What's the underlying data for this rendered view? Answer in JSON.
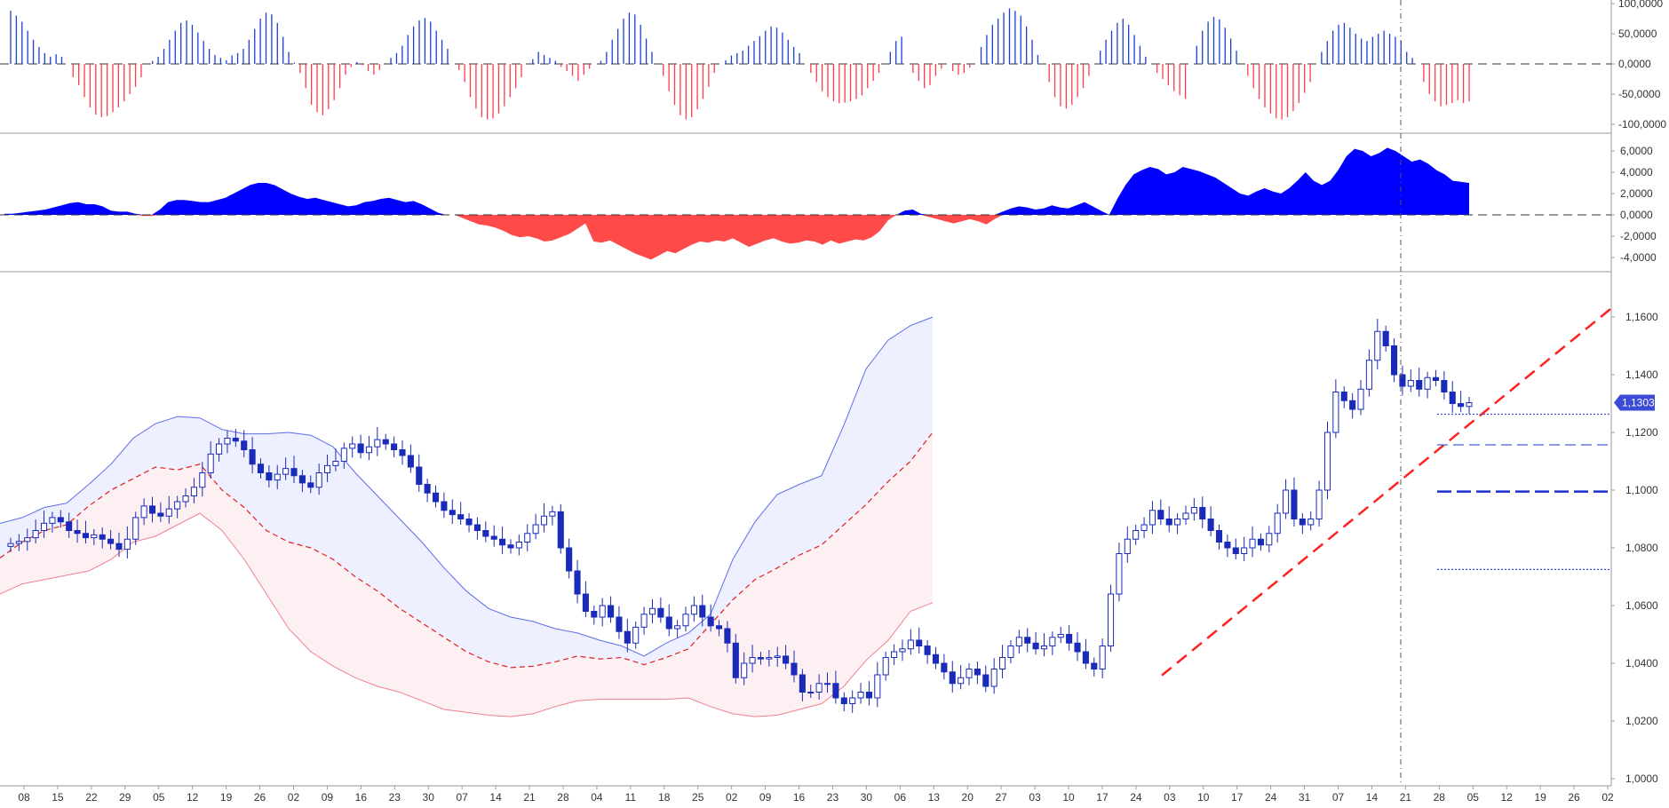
{
  "chart_data": [
    {
      "type": "bar",
      "panel": "top-oscillator",
      "y_ticks": [
        "100,0000",
        "50,0000",
        "0,0000",
        "-50,0000",
        "-100,0000"
      ],
      "ylim": [
        -100,
        100
      ],
      "zero_line": "dashed",
      "colors": {
        "positive": "#1a3fd6",
        "negative": "#ff3b4a"
      },
      "values": [
        88,
        80,
        70,
        55,
        40,
        28,
        18,
        12,
        16,
        12,
        0,
        -22,
        -35,
        -55,
        -72,
        -84,
        -88,
        -86,
        -80,
        -72,
        -62,
        -50,
        -38,
        -22,
        0,
        5,
        12,
        25,
        40,
        55,
        68,
        72,
        65,
        52,
        38,
        25,
        15,
        10,
        6,
        14,
        18,
        25,
        40,
        58,
        75,
        85,
        82,
        68,
        45,
        20,
        2,
        -15,
        -40,
        -68,
        -80,
        -85,
        -75,
        -60,
        -40,
        -18,
        -5,
        3,
        -2,
        -12,
        -18,
        -10,
        0,
        10,
        18,
        30,
        48,
        62,
        72,
        76,
        70,
        55,
        40,
        25,
        0,
        -10,
        -30,
        -55,
        -74,
        -88,
        -92,
        -90,
        -82,
        -70,
        -55,
        -40,
        -22,
        0,
        8,
        20,
        15,
        10,
        5,
        -5,
        -12,
        -20,
        -28,
        -18,
        -8,
        0,
        5,
        20,
        40,
        58,
        75,
        85,
        82,
        65,
        42,
        20,
        0,
        -20,
        -45,
        -68,
        -85,
        -92,
        -88,
        -75,
        -58,
        -38,
        -15,
        0,
        6,
        14,
        18,
        22,
        30,
        38,
        46,
        55,
        62,
        60,
        52,
        40,
        28,
        18,
        0,
        -15,
        -30,
        -45,
        -55,
        -62,
        -65,
        -64,
        -62,
        -58,
        -52,
        -40,
        -28,
        -15,
        0,
        20,
        38,
        45,
        0,
        -15,
        -28,
        -40,
        -35,
        -20,
        -8,
        0,
        -12,
        -18,
        -15,
        -6,
        0,
        28,
        48,
        65,
        75,
        85,
        92,
        88,
        80,
        62,
        40,
        15,
        0,
        -30,
        -55,
        -70,
        -74,
        -68,
        -55,
        -40,
        -20,
        0,
        22,
        40,
        55,
        68,
        75,
        65,
        48,
        30,
        12,
        0,
        -15,
        -25,
        -35,
        -45,
        -52,
        -58,
        0,
        30,
        55,
        70,
        78,
        74,
        60,
        42,
        22,
        0,
        -20,
        -40,
        -58,
        -72,
        -82,
        -90,
        -92,
        -88,
        -78,
        -65,
        -48,
        -30,
        0,
        20,
        38,
        55,
        65,
        68,
        60,
        50,
        42,
        38,
        45,
        50,
        55,
        50,
        45,
        38,
        20,
        10,
        0,
        -30,
        -50,
        -62,
        -70,
        -68,
        -65,
        -60,
        -65,
        -62
      ]
    },
    {
      "type": "area",
      "panel": "middle-oscillator",
      "y_ticks": [
        "6,0000",
        "4,0000",
        "2,0000",
        "0,0000",
        "-2,0000",
        "-4,0000"
      ],
      "ylim": [
        -5,
        7
      ],
      "zero_line": "dashed",
      "colors": {
        "positive": "#0000ff",
        "negative": "#ff4a4a"
      },
      "values": [
        0.1,
        0.1,
        0.2,
        0.3,
        0.4,
        0.5,
        0.7,
        0.9,
        1.1,
        1.2,
        1.0,
        1.0,
        0.8,
        0.4,
        0.3,
        0.3,
        0.1,
        -0.1,
        -0.1,
        0.5,
        1.2,
        1.4,
        1.4,
        1.3,
        1.2,
        1.2,
        1.4,
        1.6,
        2.0,
        2.4,
        2.8,
        3.0,
        3.0,
        2.8,
        2.4,
        2.0,
        1.7,
        1.5,
        1.6,
        1.4,
        1.2,
        1.0,
        0.8,
        0.9,
        1.2,
        1.3,
        1.5,
        1.6,
        1.4,
        1.2,
        1.3,
        1.0,
        0.6,
        0.2,
        0,
        0,
        -0.3,
        -0.6,
        -0.9,
        -1.0,
        -1.2,
        -1.5,
        -1.9,
        -2.1,
        -2.0,
        -2.2,
        -2.5,
        -2.4,
        -2.1,
        -1.8,
        -1.3,
        -0.8,
        -2.5,
        -2.6,
        -2.4,
        -2.8,
        -3.2,
        -3.6,
        -3.9,
        -4.2,
        -3.8,
        -3.4,
        -3.6,
        -3.2,
        -2.8,
        -2.5,
        -2.6,
        -2.4,
        -2.5,
        -2.2,
        -2.6,
        -3.0,
        -2.7,
        -2.4,
        -2.2,
        -2.5,
        -2.7,
        -2.6,
        -2.4,
        -2.5,
        -2.8,
        -2.4,
        -2.7,
        -2.5,
        -2.3,
        -2.4,
        -2.1,
        -1.5,
        -0.5,
        0,
        0.4,
        0.5,
        0.1,
        -0.2,
        -0.4,
        -0.6,
        -0.8,
        -0.6,
        -0.4,
        -0.6,
        -0.9,
        -0.4,
        0.3,
        0.6,
        0.8,
        0.7,
        0.5,
        0.6,
        0.9,
        0.7,
        0.6,
        0.9,
        1.2,
        0.8,
        0.4,
        0,
        1.5,
        2.8,
        3.8,
        4.2,
        4.5,
        4.3,
        3.8,
        4.0,
        4.5,
        4.3,
        4.1,
        3.8,
        3.5,
        3.0,
        2.5,
        2.0,
        1.8,
        2.2,
        2.5,
        2.2,
        2.0,
        2.5,
        3.2,
        4.0,
        3.2,
        2.8,
        3.2,
        4.2,
        5.5,
        6.2,
        6.0,
        5.5,
        5.8,
        6.3,
        6.0,
        5.5,
        5.0,
        5.2,
        4.8,
        4.2,
        3.8,
        3.2,
        3.1,
        3.0
      ]
    },
    {
      "type": "line",
      "panel": "price",
      "y_ticks": [
        "1,1600",
        "1,1400",
        "1,1200",
        "1,1000",
        "1,0800",
        "1,0600",
        "1,0400",
        "1,0200",
        "1,0000"
      ],
      "ylim": [
        1.0,
        1.1718
      ],
      "last_price_label": "1,1303",
      "x_ticks": [
        "08",
        "15",
        "22",
        "29",
        "05",
        "12",
        "19",
        "26",
        "02",
        "09",
        "16",
        "23",
        "30",
        "07",
        "14",
        "21",
        "28",
        "04",
        "11",
        "18",
        "25",
        "02",
        "09",
        "16",
        "23",
        "30",
        "06",
        "13",
        "20",
        "27",
        "03",
        "10",
        "17",
        "24",
        "03",
        "10",
        "17",
        "24",
        "31",
        "07",
        "14",
        "21",
        "28",
        "05",
        "12",
        "19",
        "26",
        "02"
      ],
      "close": [
        1.0815,
        1.0822,
        1.0835,
        1.086,
        1.0885,
        1.0905,
        1.089,
        1.086,
        1.085,
        1.0835,
        1.0845,
        1.083,
        1.0815,
        1.0795,
        1.083,
        1.0905,
        1.0945,
        1.092,
        1.091,
        1.0935,
        1.096,
        1.098,
        1.101,
        1.106,
        1.1125,
        1.116,
        1.118,
        1.117,
        1.114,
        1.109,
        1.106,
        1.1035,
        1.1055,
        1.1075,
        1.105,
        1.1025,
        1.101,
        1.106,
        1.1085,
        1.11,
        1.1145,
        1.116,
        1.113,
        1.115,
        1.1175,
        1.116,
        1.114,
        1.112,
        1.108,
        1.102,
        1.099,
        1.096,
        1.093,
        1.0915,
        1.09,
        1.088,
        1.086,
        1.084,
        1.083,
        1.081,
        1.08,
        1.082,
        1.085,
        1.088,
        1.091,
        1.0925,
        1.08,
        1.072,
        1.064,
        1.058,
        1.056,
        1.06,
        1.056,
        1.051,
        1.047,
        1.0525,
        1.057,
        1.059,
        1.056,
        1.052,
        1.053,
        1.057,
        1.06,
        1.056,
        1.053,
        1.052,
        1.047,
        1.035,
        1.04,
        1.042,
        1.0415,
        1.042,
        1.0425,
        1.04,
        1.036,
        1.03,
        1.03,
        1.033,
        1.033,
        1.028,
        1.026,
        1.028,
        1.03,
        1.028,
        1.036,
        1.042,
        1.044,
        1.045,
        1.048,
        1.046,
        1.043,
        1.04,
        1.037,
        1.033,
        1.035,
        1.038,
        1.036,
        1.032,
        1.038,
        1.042,
        1.046,
        1.049,
        1.047,
        1.045,
        1.046,
        1.049,
        1.05,
        1.047,
        1.044,
        1.04,
        1.038,
        1.046,
        1.064,
        1.078,
        1.083,
        1.086,
        1.088,
        1.093,
        1.09,
        1.088,
        1.09,
        1.092,
        1.094,
        1.09,
        1.086,
        1.082,
        1.08,
        1.078,
        1.08,
        1.083,
        1.081,
        1.085,
        1.092,
        1.1,
        1.09,
        1.088,
        1.09,
        1.1,
        1.12,
        1.134,
        1.131,
        1.128,
        1.135,
        1.145,
        1.155,
        1.15,
        1.14,
        1.136,
        1.138,
        1.135,
        1.139,
        1.138,
        1.134,
        1.13,
        1.129,
        1.1303
      ],
      "middle_band_points": [
        [
          0,
          1.0765
        ],
        [
          25,
          1.082
        ],
        [
          50,
          1.086
        ],
        [
          75,
          1.088
        ],
        [
          100,
          1.0945
        ],
        [
          125,
          1.1
        ],
        [
          150,
          1.104
        ],
        [
          175,
          1.108
        ],
        [
          200,
          1.107
        ],
        [
          225,
          1.109
        ],
        [
          250,
          1.1
        ],
        [
          275,
          1.094
        ],
        [
          300,
          1.086
        ],
        [
          325,
          1.082
        ],
        [
          350,
          1.08
        ],
        [
          375,
          1.076
        ],
        [
          400,
          1.07
        ],
        [
          425,
          1.065
        ],
        [
          450,
          1.059
        ],
        [
          475,
          1.054
        ],
        [
          500,
          1.049
        ],
        [
          525,
          1.044
        ],
        [
          550,
          1.0405
        ],
        [
          575,
          1.0385
        ],
        [
          600,
          1.039
        ],
        [
          625,
          1.0405
        ],
        [
          650,
          1.0425
        ],
        [
          675,
          1.0415
        ],
        [
          700,
          1.042
        ],
        [
          725,
          1.0395
        ],
        [
          750,
          1.042
        ],
        [
          775,
          1.045
        ],
        [
          800,
          1.0535
        ],
        [
          825,
          1.062
        ],
        [
          850,
          1.069
        ],
        [
          875,
          1.073
        ],
        [
          900,
          1.0775
        ],
        [
          925,
          1.081
        ],
        [
          950,
          1.088
        ],
        [
          975,
          1.095
        ],
        [
          1000,
          1.103
        ],
        [
          1025,
          1.11
        ],
        [
          1050,
          1.12
        ]
      ],
      "upper_band_points": [
        [
          0,
          1.0885
        ],
        [
          25,
          1.0905
        ],
        [
          50,
          1.094
        ],
        [
          75,
          1.0955
        ],
        [
          100,
          1.102
        ],
        [
          125,
          1.109
        ],
        [
          150,
          1.118
        ],
        [
          175,
          1.123
        ],
        [
          200,
          1.1255
        ],
        [
          225,
          1.125
        ],
        [
          250,
          1.121
        ],
        [
          275,
          1.1195
        ],
        [
          300,
          1.1195
        ],
        [
          325,
          1.12
        ],
        [
          350,
          1.119
        ],
        [
          375,
          1.115
        ],
        [
          400,
          1.106
        ],
        [
          425,
          1.098
        ],
        [
          450,
          1.09
        ],
        [
          475,
          1.082
        ],
        [
          500,
          1.073
        ],
        [
          525,
          1.065
        ],
        [
          550,
          1.059
        ],
        [
          575,
          1.056
        ],
        [
          600,
          1.0545
        ],
        [
          625,
          1.052
        ],
        [
          650,
          1.0505
        ],
        [
          675,
          1.048
        ],
        [
          700,
          1.046
        ],
        [
          725,
          1.0425
        ],
        [
          750,
          1.047
        ],
        [
          775,
          1.0505
        ],
        [
          800,
          1.057
        ],
        [
          825,
          1.076
        ],
        [
          850,
          1.089
        ],
        [
          875,
          1.0985
        ],
        [
          900,
          1.102
        ],
        [
          925,
          1.105
        ],
        [
          950,
          1.1225
        ],
        [
          975,
          1.142
        ],
        [
          1000,
          1.152
        ],
        [
          1025,
          1.157
        ],
        [
          1050,
          1.16
        ]
      ],
      "lower_band_points": [
        [
          0,
          1.064
        ],
        [
          25,
          1.0675
        ],
        [
          50,
          1.069
        ],
        [
          75,
          1.0705
        ],
        [
          100,
          1.072
        ],
        [
          125,
          1.076
        ],
        [
          150,
          1.082
        ],
        [
          175,
          1.084
        ],
        [
          200,
          1.088
        ],
        [
          225,
          1.092
        ],
        [
          250,
          1.086
        ],
        [
          275,
          1.076
        ],
        [
          300,
          1.064
        ],
        [
          325,
          1.052
        ],
        [
          350,
          1.044
        ],
        [
          375,
          1.039
        ],
        [
          400,
          1.035
        ],
        [
          425,
          1.032
        ],
        [
          450,
          1.03
        ],
        [
          475,
          1.027
        ],
        [
          500,
          1.024
        ],
        [
          525,
          1.023
        ],
        [
          550,
          1.022
        ],
        [
          575,
          1.0215
        ],
        [
          600,
          1.0225
        ],
        [
          625,
          1.025
        ],
        [
          650,
          1.027
        ],
        [
          675,
          1.0275
        ],
        [
          700,
          1.0275
        ],
        [
          725,
          1.0275
        ],
        [
          750,
          1.0275
        ],
        [
          775,
          1.028
        ],
        [
          800,
          1.025
        ],
        [
          825,
          1.0225
        ],
        [
          850,
          1.0215
        ],
        [
          875,
          1.022
        ],
        [
          900,
          1.024
        ],
        [
          925,
          1.026
        ],
        [
          950,
          1.032
        ],
        [
          975,
          1.041
        ],
        [
          1000,
          1.048
        ],
        [
          1025,
          1.058
        ],
        [
          1050,
          1.061
        ]
      ],
      "trendline": {
        "start": [
          1.0358,
          1.0358
        ],
        "end_price": 1.163,
        "color": "#ff2020",
        "style": "dashed"
      },
      "horizontal_levels": [
        {
          "price": 1.1263,
          "style": "dotted",
          "color": "#3b4bd6"
        },
        {
          "price": 1.1157,
          "style": "dashed",
          "color": "#4a5be0"
        },
        {
          "price": 1.0995,
          "style": "long-dash",
          "color": "#1a2fd0"
        },
        {
          "price": 1.0725,
          "style": "dotted",
          "color": "#3b4bd6"
        }
      ],
      "colors": {
        "candle": "#1a2bb8",
        "upper_band_line": "#5b6fe8",
        "upper_band_fill": "#eef0ff",
        "lower_band_line": "#f08090",
        "lower_band_fill": "#fdf0f2",
        "middle_band": "#e02020",
        "badge": "#3b4bd6"
      }
    }
  ]
}
